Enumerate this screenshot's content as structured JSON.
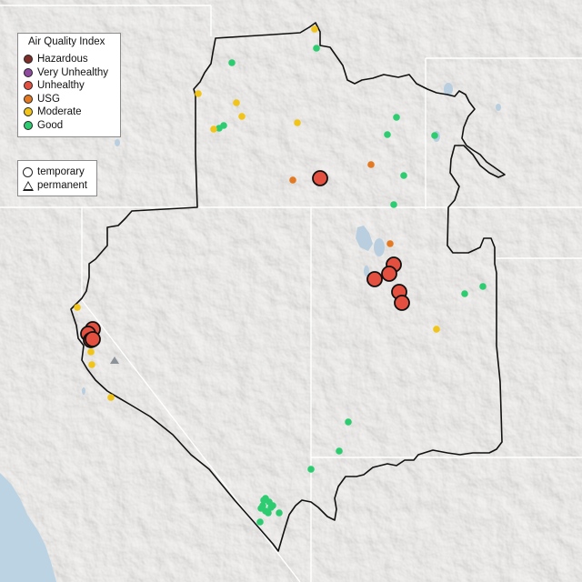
{
  "legend": {
    "title": "Air Quality Index",
    "categories": [
      {
        "label": "Hazardous",
        "color": "#7e2f2a"
      },
      {
        "label": "Very Unhealthy",
        "color": "#8e4a9e"
      },
      {
        "label": "Unhealthy",
        "color": "#e4503f"
      },
      {
        "label": "USG",
        "color": "#e37a22"
      },
      {
        "label": "Moderate",
        "color": "#f1c419"
      },
      {
        "label": "Good",
        "color": "#2ecc71"
      }
    ]
  },
  "site_types": {
    "temporary": "temporary",
    "permanent": "permanent"
  },
  "monitors": {
    "unhealthy": {
      "color": "#e4503f",
      "type": "temporary",
      "count": 10
    },
    "usg": {
      "color": "#e37a22",
      "type": "temporary",
      "count": 3
    },
    "moderate": {
      "color": "#f1c419",
      "type": "temporary",
      "count": 13
    },
    "good": {
      "color": "#2ecc71",
      "type": "temporary",
      "count": 25
    },
    "permanent_sites": {
      "color": "#8a9298",
      "type": "permanent",
      "count": 1
    }
  },
  "colors": {
    "water": "#bcd3e4",
    "land": "#e7e5e1",
    "boundary": "#111111",
    "state_lines": "#ffffff"
  }
}
